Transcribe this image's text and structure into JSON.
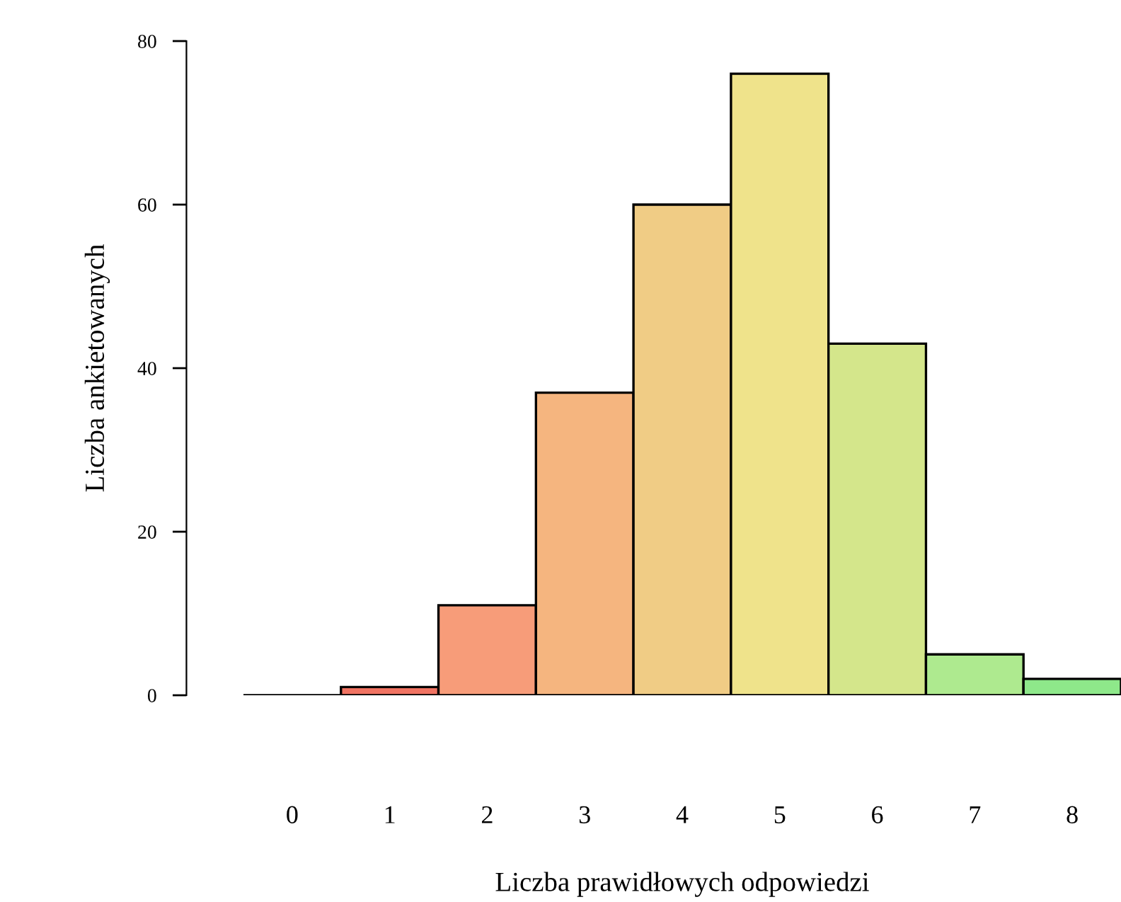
{
  "chart_data": {
    "type": "bar",
    "xlabel": "Liczba prawidłowych odpowiedzi",
    "ylabel": "Liczba ankietowanych",
    "categories": [
      "0",
      "1",
      "2",
      "3",
      "4",
      "5",
      "6",
      "7",
      "8"
    ],
    "values": [
      0,
      1,
      11,
      37,
      60,
      76,
      43,
      5,
      2
    ],
    "colors": [
      "#000000",
      "#f07362",
      "#f79c79",
      "#f5b57f",
      "#f0cc85",
      "#efe38b",
      "#d4e68b",
      "#aeea8f",
      "#8ee88a"
    ],
    "ylim": [
      0,
      80
    ],
    "yticks": [
      0,
      20,
      40,
      60,
      80
    ],
    "grid": false
  }
}
